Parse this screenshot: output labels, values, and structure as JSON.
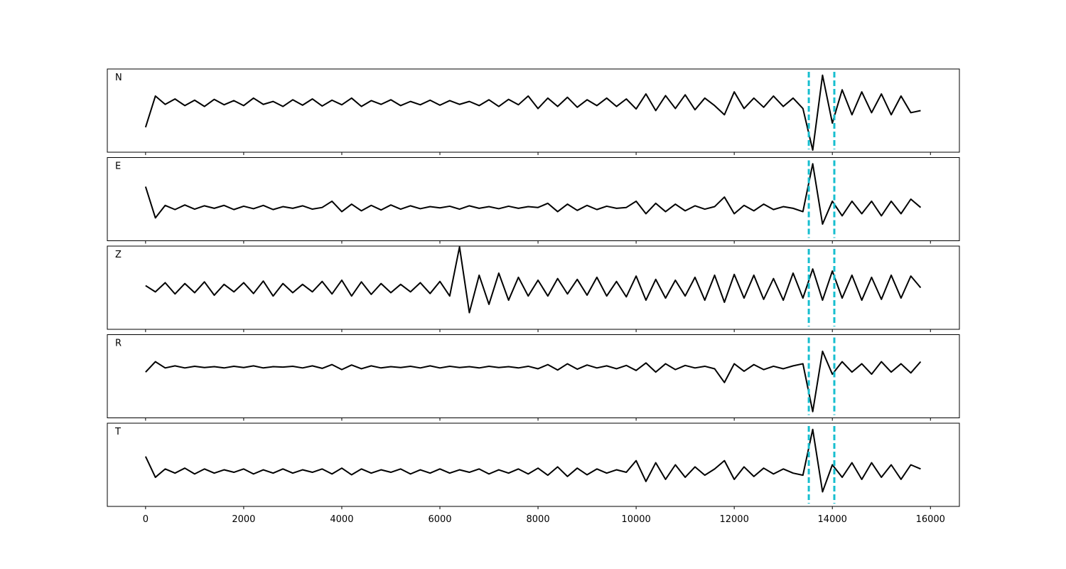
{
  "chart_data": {
    "type": "line",
    "x": [
      0,
      200,
      400,
      600,
      800,
      1000,
      1200,
      1400,
      1600,
      1800,
      2000,
      2200,
      2400,
      2600,
      2800,
      3000,
      3200,
      3400,
      3600,
      3800,
      4000,
      4200,
      4400,
      4600,
      4800,
      5000,
      5200,
      5400,
      5600,
      5800,
      6000,
      6200,
      6400,
      6600,
      6800,
      7000,
      7200,
      7400,
      7600,
      7800,
      8000,
      8200,
      8400,
      8600,
      8800,
      9000,
      9200,
      9400,
      9600,
      9800,
      10000,
      10200,
      10400,
      10600,
      10800,
      11000,
      11200,
      11400,
      11600,
      11800,
      12000,
      12200,
      12400,
      12600,
      12800,
      13000,
      13200,
      13400,
      13600,
      13800,
      14000,
      14200,
      14400,
      14600,
      14800,
      15000,
      15200,
      15400,
      15600,
      15800
    ],
    "series": [
      {
        "name": "N",
        "color": "#000000",
        "values": [
          -0.4,
          0.35,
          0.15,
          0.28,
          0.12,
          0.25,
          0.1,
          0.27,
          0.14,
          0.24,
          0.12,
          0.3,
          0.15,
          0.22,
          0.1,
          0.26,
          0.13,
          0.28,
          0.11,
          0.25,
          0.14,
          0.3,
          0.1,
          0.24,
          0.15,
          0.26,
          0.12,
          0.22,
          0.14,
          0.25,
          0.13,
          0.24,
          0.15,
          0.22,
          0.12,
          0.26,
          0.1,
          0.27,
          0.14,
          0.35,
          0.05,
          0.3,
          0.1,
          0.32,
          0.08,
          0.26,
          0.12,
          0.3,
          0.1,
          0.28,
          0.04,
          0.4,
          0.0,
          0.36,
          0.05,
          0.38,
          0.02,
          0.3,
          0.12,
          -0.1,
          0.45,
          0.05,
          0.3,
          0.08,
          0.35,
          0.1,
          0.3,
          0.05,
          -0.95,
          0.85,
          -0.3,
          0.5,
          -0.1,
          0.45,
          -0.05,
          0.4,
          -0.1,
          0.35,
          -0.05,
          0.0
        ]
      },
      {
        "name": "E",
        "color": "#000000",
        "values": [
          0.3,
          -0.45,
          -0.15,
          -0.25,
          -0.14,
          -0.24,
          -0.16,
          -0.22,
          -0.15,
          -0.25,
          -0.17,
          -0.23,
          -0.15,
          -0.25,
          -0.18,
          -0.22,
          -0.16,
          -0.24,
          -0.2,
          -0.05,
          -0.3,
          -0.12,
          -0.28,
          -0.15,
          -0.26,
          -0.14,
          -0.24,
          -0.16,
          -0.23,
          -0.18,
          -0.21,
          -0.17,
          -0.24,
          -0.16,
          -0.22,
          -0.18,
          -0.23,
          -0.17,
          -0.22,
          -0.18,
          -0.2,
          -0.1,
          -0.3,
          -0.12,
          -0.27,
          -0.15,
          -0.25,
          -0.17,
          -0.22,
          -0.2,
          -0.05,
          -0.35,
          -0.1,
          -0.3,
          -0.12,
          -0.28,
          -0.16,
          -0.24,
          -0.18,
          0.05,
          -0.35,
          -0.15,
          -0.28,
          -0.12,
          -0.25,
          -0.18,
          -0.22,
          -0.3,
          0.85,
          -0.6,
          -0.05,
          -0.4,
          -0.05,
          -0.35,
          -0.05,
          -0.4,
          -0.05,
          -0.35,
          0.0,
          -0.2
        ]
      },
      {
        "name": "Z",
        "color": "#000000",
        "values": [
          0.05,
          -0.1,
          0.12,
          -0.15,
          0.1,
          -0.12,
          0.14,
          -0.18,
          0.08,
          -0.1,
          0.12,
          -0.14,
          0.16,
          -0.2,
          0.1,
          -0.12,
          0.08,
          -0.1,
          0.15,
          -0.15,
          0.18,
          -0.2,
          0.14,
          -0.16,
          0.1,
          -0.12,
          0.08,
          -0.1,
          0.12,
          -0.14,
          0.15,
          -0.2,
          0.98,
          -0.6,
          0.3,
          -0.4,
          0.35,
          -0.3,
          0.25,
          -0.2,
          0.18,
          -0.2,
          0.22,
          -0.15,
          0.2,
          -0.18,
          0.25,
          -0.2,
          0.15,
          -0.22,
          0.28,
          -0.3,
          0.2,
          -0.25,
          0.18,
          -0.2,
          0.25,
          -0.3,
          0.3,
          -0.35,
          0.32,
          -0.25,
          0.3,
          -0.28,
          0.22,
          -0.3,
          0.35,
          -0.25,
          0.45,
          -0.3,
          0.4,
          -0.25,
          0.3,
          -0.3,
          0.25,
          -0.28,
          0.3,
          -0.25,
          0.28,
          0.0
        ]
      },
      {
        "name": "R",
        "color": "#000000",
        "values": [
          0.1,
          0.35,
          0.2,
          0.25,
          0.2,
          0.24,
          0.21,
          0.23,
          0.2,
          0.24,
          0.21,
          0.25,
          0.2,
          0.23,
          0.22,
          0.24,
          0.2,
          0.25,
          0.19,
          0.28,
          0.16,
          0.27,
          0.18,
          0.25,
          0.2,
          0.23,
          0.21,
          0.24,
          0.2,
          0.25,
          0.2,
          0.24,
          0.21,
          0.23,
          0.2,
          0.24,
          0.21,
          0.23,
          0.2,
          0.24,
          0.18,
          0.28,
          0.15,
          0.3,
          0.17,
          0.27,
          0.2,
          0.25,
          0.18,
          0.26,
          0.14,
          0.32,
          0.1,
          0.3,
          0.16,
          0.26,
          0.2,
          0.24,
          0.18,
          -0.15,
          0.3,
          0.12,
          0.28,
          0.16,
          0.24,
          0.18,
          0.25,
          0.3,
          -0.85,
          0.6,
          0.05,
          0.35,
          0.1,
          0.3,
          0.05,
          0.35,
          0.1,
          0.3,
          0.08,
          0.35
        ]
      },
      {
        "name": "T",
        "color": "#000000",
        "values": [
          0.2,
          -0.3,
          -0.1,
          -0.2,
          -0.08,
          -0.22,
          -0.1,
          -0.2,
          -0.12,
          -0.18,
          -0.1,
          -0.22,
          -0.12,
          -0.2,
          -0.1,
          -0.2,
          -0.12,
          -0.18,
          -0.1,
          -0.22,
          -0.08,
          -0.24,
          -0.1,
          -0.2,
          -0.12,
          -0.18,
          -0.1,
          -0.22,
          -0.12,
          -0.2,
          -0.1,
          -0.2,
          -0.12,
          -0.18,
          -0.1,
          -0.22,
          -0.12,
          -0.2,
          -0.1,
          -0.22,
          -0.08,
          -0.25,
          -0.05,
          -0.28,
          -0.08,
          -0.24,
          -0.1,
          -0.2,
          -0.12,
          -0.18,
          0.1,
          -0.4,
          0.05,
          -0.35,
          0.0,
          -0.3,
          -0.05,
          -0.25,
          -0.1,
          0.1,
          -0.35,
          -0.05,
          -0.28,
          -0.08,
          -0.22,
          -0.1,
          -0.2,
          -0.25,
          0.85,
          -0.65,
          0.0,
          -0.3,
          0.05,
          -0.35,
          0.05,
          -0.3,
          0.0,
          -0.35,
          0.0,
          -0.1
        ]
      }
    ],
    "xlim": [
      -780,
      16590
    ],
    "xticks": [
      0,
      2000,
      4000,
      6000,
      8000,
      10000,
      12000,
      14000,
      16000
    ],
    "ylim": [
      -1,
      1
    ],
    "vlines": [
      13520,
      14040
    ],
    "vline_color": "#17becf"
  }
}
